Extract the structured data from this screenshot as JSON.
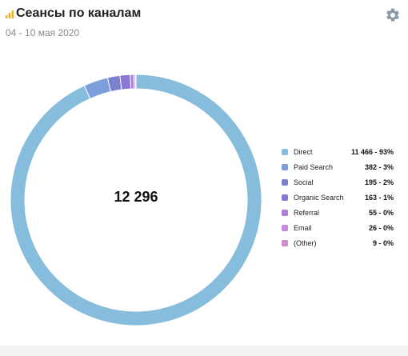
{
  "header": {
    "title": "Сеансы по каналам",
    "subtitle": "04 - 10 мая 2020",
    "settings_icon": "gear-icon",
    "title_icon": "bar-chart-icon"
  },
  "colors": {
    "accent": "#f0b429",
    "gear": "#8a98a8"
  },
  "chart_data": {
    "type": "pie",
    "total_label": "12 296",
    "title": "Сеансы по каналам",
    "slices": [
      {
        "name": "Direct",
        "value": 11466,
        "label": "11 466 - 93%",
        "color": "#86bcdc"
      },
      {
        "name": "Paid Search",
        "value": 382,
        "label": "382 - 3%",
        "color": "#7c9fdb"
      },
      {
        "name": "Social",
        "value": 195,
        "label": "195 - 2%",
        "color": "#7982cf"
      },
      {
        "name": "Organic Search",
        "value": 163,
        "label": "163 - 1%",
        "color": "#8b77d6"
      },
      {
        "name": "Referral",
        "value": 55,
        "label": "55 - 0%",
        "color": "#ad7fd6"
      },
      {
        "name": "Email",
        "value": 26,
        "label": "26 - 0%",
        "color": "#c48adb"
      },
      {
        "name": "(Other)",
        "value": 9,
        "label": "9 - 0%",
        "color": "#d08ad0"
      }
    ],
    "legend_position": "right"
  }
}
